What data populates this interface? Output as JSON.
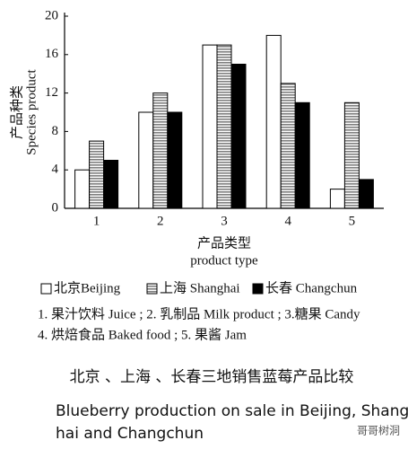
{
  "chart_data": {
    "type": "bar",
    "ylabel": [
      "产品种类",
      "Species product"
    ],
    "xlabel": [
      "产品类型",
      "product type"
    ],
    "categories": [
      "1",
      "2",
      "3",
      "4",
      "5"
    ],
    "series": [
      {
        "name": "北京Beijing",
        "color": "#ffffff",
        "values": [
          4,
          10,
          17,
          18,
          2
        ]
      },
      {
        "name": "上海 Shanghai",
        "color": "#808080",
        "hatch": "horizontal",
        "values": [
          7,
          12,
          17,
          13,
          11
        ]
      },
      {
        "name": "长春 Changchun",
        "color": "#000000",
        "values": [
          5,
          10,
          15,
          11,
          3
        ]
      }
    ],
    "ylim": [
      0,
      20
    ],
    "yticks": [
      0,
      4,
      8,
      12,
      16,
      20
    ],
    "notes": [
      "1. 果汁饮料 Juice ; 2. 乳制品 Milk product ; 3.糖果 Candy",
      "4. 烘焙食品 Baked food ; 5. 果酱 Jam"
    ],
    "caption_zh": "北京 、上海 、长春三地销售蓝莓产品比较",
    "caption_en": [
      "Blueberry production on sale in Beijing,  Shang-",
      "hai and Changchun"
    ],
    "watermark": "哥哥树洞"
  }
}
